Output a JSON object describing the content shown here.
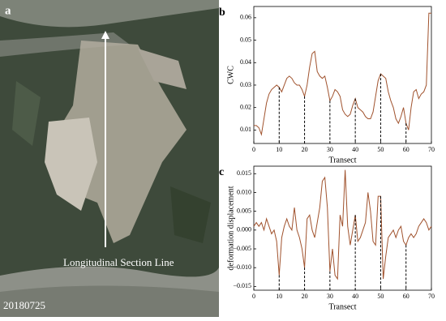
{
  "image": {
    "label": "a",
    "annotation": "Longitudinal Section Line",
    "date": "20180725"
  },
  "chart_data": [
    {
      "type": "line",
      "label": "b",
      "ylabel": "CWC",
      "xlabel": "Transect",
      "x": [
        0,
        1,
        2,
        3,
        4,
        5,
        6,
        7,
        8,
        9,
        10,
        11,
        12,
        13,
        14,
        15,
        16,
        17,
        18,
        19,
        20,
        21,
        22,
        23,
        24,
        25,
        26,
        27,
        28,
        29,
        30,
        31,
        32,
        33,
        34,
        35,
        36,
        37,
        38,
        39,
        40,
        41,
        42,
        43,
        44,
        45,
        46,
        47,
        48,
        49,
        50,
        51,
        52,
        53,
        54,
        55,
        56,
        57,
        58,
        59,
        60,
        61,
        62,
        63,
        64,
        65,
        66,
        67,
        68,
        69,
        70
      ],
      "series": [
        {
          "color": "#a0522d",
          "values": [
            0.012,
            0.012,
            0.011,
            0.008,
            0.015,
            0.022,
            0.026,
            0.028,
            0.029,
            0.03,
            0.029,
            0.027,
            0.03,
            0.033,
            0.034,
            0.033,
            0.031,
            0.03,
            0.03,
            0.028,
            0.025,
            0.03,
            0.038,
            0.044,
            0.045,
            0.036,
            0.034,
            0.033,
            0.034,
            0.029,
            0.023,
            0.025,
            0.028,
            0.027,
            0.025,
            0.019,
            0.017,
            0.016,
            0.017,
            0.021,
            0.024,
            0.02,
            0.019,
            0.018,
            0.016,
            0.015,
            0.015,
            0.018,
            0.025,
            0.032,
            0.035,
            0.034,
            0.033,
            0.027,
            0.023,
            0.02,
            0.015,
            0.013,
            0.016,
            0.02,
            0.013,
            0.01,
            0.02,
            0.027,
            0.028,
            0.024,
            0.026,
            0.027,
            0.03,
            0.062,
            0.062
          ]
        }
      ],
      "dashed_lines_x": [
        10,
        20,
        30,
        40,
        50,
        60
      ],
      "xlim": [
        0,
        70
      ],
      "xticks": [
        0,
        10,
        20,
        30,
        40,
        50,
        60,
        70
      ],
      "ylim": [
        0.004,
        0.065
      ],
      "yticks": [
        0.01,
        0.02,
        0.03,
        0.04,
        0.05,
        0.06
      ]
    },
    {
      "type": "line",
      "label": "c",
      "ylabel": "deformation displacement",
      "xlabel": "Transect",
      "x": [
        0,
        1,
        2,
        3,
        4,
        5,
        6,
        7,
        8,
        9,
        10,
        11,
        12,
        13,
        14,
        15,
        16,
        17,
        18,
        19,
        20,
        21,
        22,
        23,
        24,
        25,
        26,
        27,
        28,
        29,
        30,
        31,
        32,
        33,
        34,
        35,
        36,
        37,
        38,
        39,
        40,
        41,
        42,
        43,
        44,
        45,
        46,
        47,
        48,
        49,
        50,
        51,
        52,
        53,
        54,
        55,
        56,
        57,
        58,
        59,
        60,
        61,
        62,
        63,
        64,
        65,
        66,
        67,
        68,
        69,
        70
      ],
      "series": [
        {
          "color": "#a0522d",
          "values": [
            0.001,
            0.002,
            0.001,
            0.002,
            0.0,
            0.003,
            0.001,
            -0.001,
            0.0,
            -0.003,
            -0.012,
            -0.002,
            0.001,
            0.003,
            0.001,
            0.0,
            0.006,
            0.0,
            -0.002,
            -0.005,
            -0.01,
            0.003,
            0.004,
            0.0,
            -0.002,
            0.002,
            0.006,
            0.013,
            0.014,
            0.006,
            -0.011,
            -0.005,
            -0.012,
            -0.013,
            0.004,
            0.001,
            0.016,
            0.001,
            -0.004,
            0.0,
            0.004,
            -0.003,
            -0.002,
            0.0,
            0.002,
            0.01,
            0.005,
            -0.003,
            -0.004,
            0.009,
            0.009,
            -0.013,
            -0.007,
            -0.002,
            -0.001,
            0.0,
            -0.002,
            0.0,
            0.001,
            -0.003,
            -0.004,
            -0.002,
            -0.001,
            -0.002,
            -0.001,
            0.001,
            0.002,
            0.003,
            0.002,
            0.0,
            0.001
          ]
        }
      ],
      "dashed_lines_x": [
        10,
        20,
        30,
        40,
        50,
        60
      ],
      "xlim": [
        0,
        70
      ],
      "xticks": [
        0,
        10,
        20,
        30,
        40,
        50,
        60,
        70
      ],
      "ylim": [
        -0.016,
        0.017
      ],
      "yticks": [
        {
          "value": -0.015,
          "label": "−0.015"
        },
        {
          "value": -0.01,
          "label": "−0.010"
        },
        {
          "value": -0.005,
          "label": "−0.005"
        },
        {
          "value": 0,
          "label": "0.000"
        },
        0.005,
        {
          "value": 0.01,
          "label": "0.010"
        },
        0.015
      ]
    }
  ]
}
